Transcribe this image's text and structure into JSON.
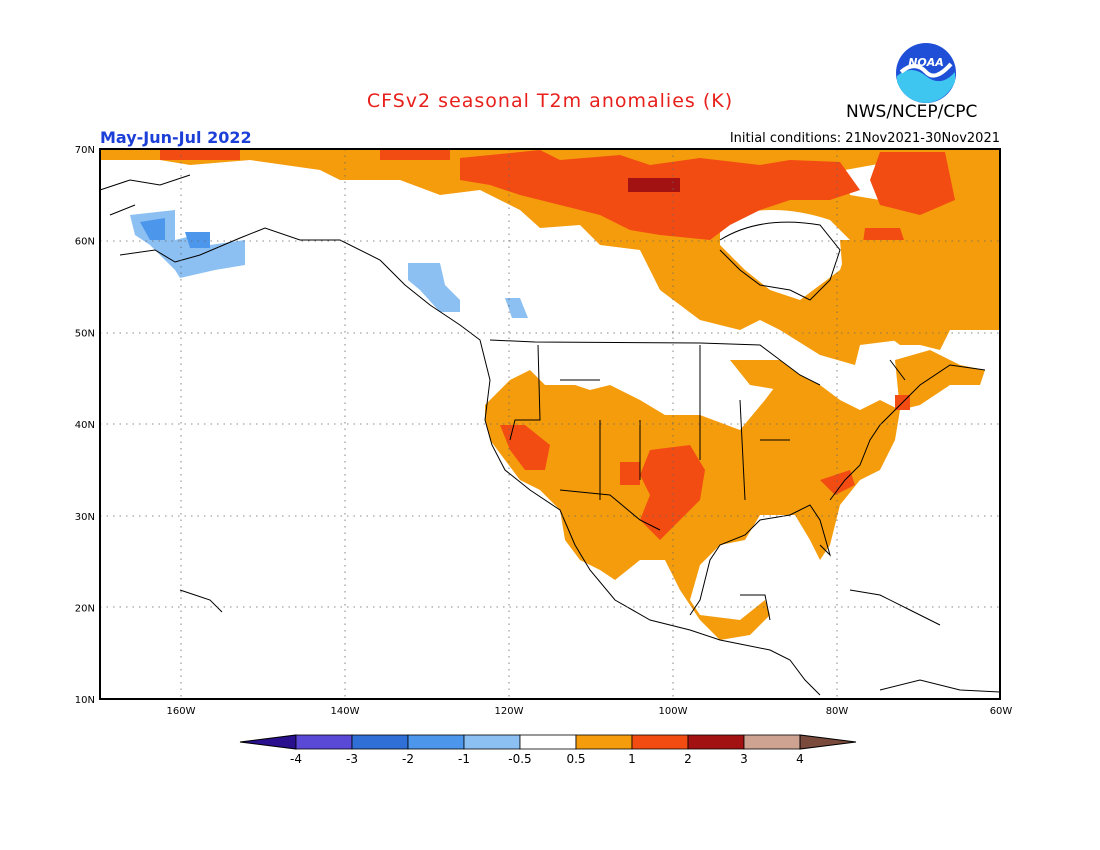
{
  "title": "CFSv2 seasonal T2m anomalies (K)",
  "agency": "NWS/NCEP/CPC",
  "logo_text": "NOAA",
  "period": "May-Jun-Jul 2022",
  "initial_conditions": "Initial conditions: 21Nov2021-30Nov2021",
  "lat_labels": [
    "70N",
    "60N",
    "50N",
    "40N",
    "30N",
    "20N",
    "10N"
  ],
  "lon_labels": [
    "160W",
    "140W",
    "120W",
    "100W",
    "80W",
    "60W"
  ],
  "colorbar": {
    "tick_labels": [
      "-4",
      "-3",
      "-2",
      "-1",
      "-0.5",
      "0.5",
      "1",
      "2",
      "3",
      "4"
    ],
    "colors": [
      "#2a0f8f",
      "#5a48d6",
      "#2f6fd6",
      "#4c97ec",
      "#8cbff2",
      "#ffffff",
      "#f59c0d",
      "#f24c12",
      "#a31212",
      "#cfa392",
      "#7a4a3c"
    ]
  },
  "colors": {
    "title": "#e8201c",
    "period": "#1c3fd8",
    "anom_0_5_1": "#f59c0d",
    "anom_1_2": "#f24c12",
    "anom_2_3": "#a31212",
    "anom_neg_0_5_1": "#8cbff2",
    "anom_neg_1_2": "#4c97ec"
  }
}
